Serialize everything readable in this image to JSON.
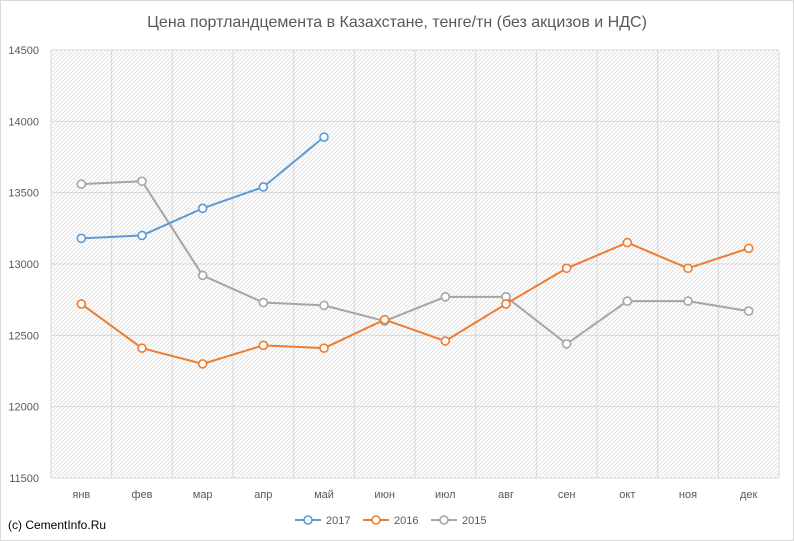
{
  "chart_data": {
    "type": "line",
    "title": "Цена портландцемента в Казахстане, тенге/тн (без акцизов и НДС)",
    "xlabel": "",
    "ylabel": "",
    "categories": [
      "янв",
      "фев",
      "мар",
      "апр",
      "май",
      "июн",
      "июл",
      "авг",
      "сен",
      "окт",
      "ноя",
      "дек"
    ],
    "ylim": [
      11500,
      14500
    ],
    "yticks": [
      11500,
      12000,
      12500,
      13000,
      13500,
      14000,
      14500
    ],
    "grid": true,
    "legend_position": "bottom",
    "markers": "hollow-circle",
    "series": [
      {
        "name": "2017",
        "color": "#5b9bd5",
        "values": [
          13180,
          13200,
          13390,
          13540,
          13890,
          null,
          null,
          null,
          null,
          null,
          null,
          null
        ]
      },
      {
        "name": "2016",
        "color": "#ed7d31",
        "values": [
          12720,
          12410,
          12300,
          12430,
          12410,
          12610,
          12460,
          12720,
          12970,
          13150,
          12970,
          13110
        ]
      },
      {
        "name": "2015",
        "color": "#a5a5a5",
        "values": [
          13560,
          13580,
          12920,
          12730,
          12710,
          12600,
          12770,
          12770,
          12440,
          12740,
          12740,
          12670
        ]
      }
    ]
  },
  "footer": {
    "copyright": "(с) CementInfo.Ru"
  }
}
